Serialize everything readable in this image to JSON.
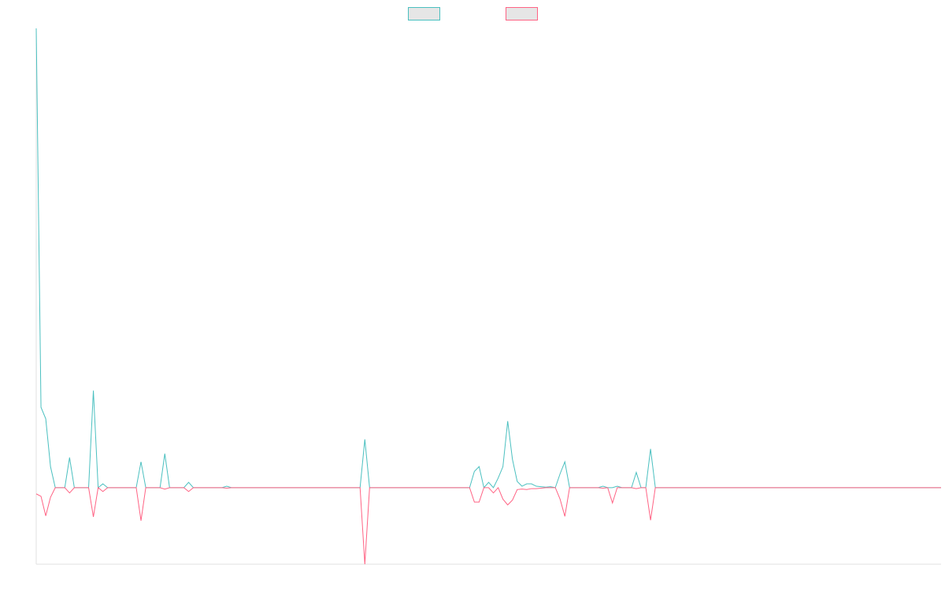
{
  "chart_data": {
    "type": "line",
    "title": "",
    "xlabel": "",
    "ylabel": "",
    "ylim": [
      -16,
      96
    ],
    "grid": false,
    "legend_position": "top-center",
    "x": [
      0,
      1,
      2,
      3,
      4,
      5,
      6,
      7,
      8,
      9,
      10,
      11,
      12,
      13,
      14,
      15,
      16,
      17,
      18,
      19,
      20,
      21,
      22,
      23,
      24,
      25,
      26,
      27,
      28,
      29,
      30,
      31,
      32,
      33,
      34,
      35,
      36,
      37,
      38,
      39,
      40,
      41,
      42,
      43,
      44,
      45,
      46,
      47,
      48,
      49,
      50,
      51,
      52,
      53,
      54,
      55,
      56,
      57,
      58,
      59,
      60,
      61,
      62,
      63,
      64,
      65,
      66,
      67,
      68,
      69,
      70,
      71,
      72,
      73,
      74,
      75,
      76,
      77,
      78,
      79,
      80,
      81,
      82,
      83,
      84,
      85,
      86,
      87,
      88,
      89,
      90,
      91,
      92,
      93,
      94,
      95,
      96,
      97,
      98,
      99,
      100,
      101,
      102,
      103,
      104,
      105,
      106,
      107,
      108,
      109,
      110,
      111,
      112,
      113,
      114,
      115,
      116,
      117,
      118,
      119,
      120,
      121,
      122,
      123,
      124,
      125,
      126,
      127,
      128,
      129,
      130,
      131,
      132,
      133,
      134,
      135,
      136,
      137,
      138,
      139,
      140,
      141,
      142,
      143,
      144,
      145,
      146,
      147,
      148,
      149,
      150,
      151,
      152,
      153,
      154,
      155,
      156,
      157,
      158,
      159,
      160,
      161,
      162,
      163,
      164,
      165,
      166,
      167,
      168,
      169,
      170,
      171,
      172,
      173,
      174,
      175,
      176,
      177,
      178,
      179,
      180,
      181,
      182,
      183,
      184,
      185,
      186,
      187,
      188,
      189,
      190
    ],
    "series": [
      {
        "color": "#4bc0c0",
        "values": [
          96,
          16.8,
          14.4,
          4.4,
          0,
          0,
          0,
          6.3,
          0,
          0,
          0,
          0,
          20.3,
          0,
          0.8,
          0,
          0,
          0,
          0,
          0,
          0,
          0,
          5.4,
          0,
          0,
          0,
          0,
          7.1,
          0,
          0,
          0,
          0,
          1.1,
          0,
          0,
          0,
          0,
          0,
          0,
          0,
          0.3,
          0,
          0,
          0,
          0,
          0,
          0,
          0,
          0,
          0,
          0,
          0,
          0,
          0,
          0,
          0,
          0,
          0,
          0,
          0,
          0,
          0,
          0,
          0,
          0,
          0,
          0,
          0,
          0,
          10.1,
          0,
          0,
          0,
          0,
          0,
          0,
          0,
          0,
          0,
          0,
          0,
          0,
          0,
          0,
          0,
          0,
          0,
          0,
          0,
          0,
          0,
          0,
          3.4,
          4.4,
          0,
          1.1,
          0,
          2.0,
          4.4,
          13.9,
          5.9,
          1.3,
          0.3,
          0.8,
          0.8,
          0.3,
          0.2,
          0.1,
          0.2,
          0,
          2.9,
          5.4,
          0,
          0,
          0,
          0,
          0,
          0,
          0,
          0.3,
          0,
          0,
          0.3,
          0,
          0,
          0,
          3.2,
          0,
          0,
          8.1,
          0,
          0,
          0,
          0,
          0,
          0,
          0,
          0,
          0,
          0,
          0,
          0,
          0,
          0,
          0,
          0,
          0,
          0,
          0,
          0,
          0,
          0,
          0,
          0,
          0,
          0,
          0,
          0,
          0,
          0,
          0,
          0,
          0,
          0,
          0,
          0,
          0,
          0,
          0,
          0,
          0,
          0,
          0,
          0,
          0,
          0,
          0,
          0,
          0,
          0,
          0,
          0,
          0,
          0,
          0,
          0,
          0,
          0,
          0,
          0,
          0
        ]
      },
      {
        "color": "#ff6384",
        "values": [
          -1.3,
          -1.8,
          -5.9,
          -2.0,
          0,
          0,
          0,
          -1.1,
          0,
          0,
          0,
          0,
          -6.1,
          0,
          -0.8,
          0,
          0,
          0,
          0,
          0,
          0,
          0,
          -6.9,
          0,
          0,
          0,
          0,
          -0.3,
          0,
          0,
          0,
          0,
          -0.8,
          0,
          0,
          0,
          0,
          0,
          0,
          0,
          -0.1,
          0,
          0,
          0,
          0,
          0,
          0,
          0,
          0,
          0,
          0,
          0,
          0,
          0,
          0,
          0,
          0,
          0,
          0,
          0,
          0,
          0,
          0,
          0,
          0,
          0,
          0,
          0,
          0,
          -16.0,
          0,
          0,
          0,
          0,
          0,
          0,
          0,
          0,
          0,
          0,
          0,
          0,
          0,
          0,
          0,
          0,
          0,
          0,
          0,
          0,
          0,
          0,
          -3.0,
          -3.0,
          0,
          0,
          -1.1,
          0,
          -2.4,
          -3.6,
          -2.6,
          -0.4,
          -0.3,
          -0.4,
          -0.2,
          -0.2,
          -0.1,
          0,
          0,
          0,
          -2.4,
          -6.0,
          0,
          0,
          0,
          0,
          0,
          0,
          0,
          -0.1,
          0,
          -3.2,
          0,
          0,
          0,
          0,
          -0.2,
          0,
          0,
          -6.8,
          0,
          0,
          0,
          0,
          0,
          0,
          0,
          0,
          0,
          0,
          0,
          0,
          0,
          0,
          0,
          0,
          0,
          0,
          0,
          0,
          0,
          0,
          0,
          0,
          0,
          0,
          0,
          0,
          0,
          0,
          0,
          0,
          0,
          0,
          0,
          0,
          0,
          0,
          0,
          0,
          0,
          0,
          0,
          0,
          0,
          0,
          0,
          0,
          0,
          0,
          0,
          0,
          0,
          0,
          0,
          0,
          0,
          0,
          0,
          0,
          0
        ]
      }
    ],
    "legend": {
      "swatch_fill": "#e6e6e6",
      "items": [
        {
          "label": "",
          "color": "#4bc0c0"
        },
        {
          "label": "",
          "color": "#ff6384"
        }
      ]
    }
  }
}
